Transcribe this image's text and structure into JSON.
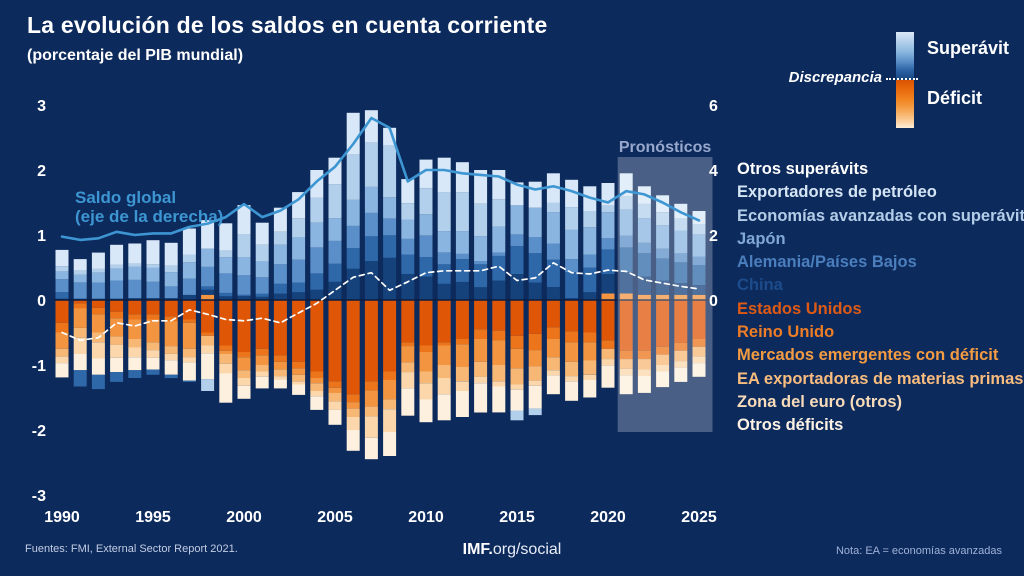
{
  "header": {
    "title": "La evolución de los saldos en cuenta corriente",
    "subtitle": "(porcentaje del PIB mundial)"
  },
  "colors": {
    "background": "#0d2a5c",
    "zero_line": "#0a1d40",
    "axis_text": "#ffffff",
    "forecast_overlay": "rgba(255,255,255,0.25)",
    "forecast_label": "#97a8cc",
    "saldo_line": "#3d96d2",
    "discrepancia_line": "#ffffff"
  },
  "top_legend": {
    "superavit_label": "Superávit",
    "deficit_label": "Déficit",
    "discrepancia_label": "Discrepancia",
    "gradient_blues": [
      "#dbe8f7",
      "#b5d0ec",
      "#8db9e0",
      "#5e92c9",
      "#2c63a5",
      "#16427c"
    ],
    "gradient_oranges": [
      "#d95303",
      "#e96a0c",
      "#f0831f",
      "#f5a14b",
      "#fac488",
      "#fdebd6"
    ]
  },
  "in_chart": {
    "saldo_label_line1": "Saldo global",
    "saldo_label_line2": "(eje de la derecha)",
    "forecast_label": "Pronósticos"
  },
  "footer": {
    "source": "Fuentes: FMI, External Sector Report 2021.",
    "social_bold": "IMF.",
    "social_rest": "org/social",
    "note": "Nota: EA = economías avanzadas"
  },
  "chart_data": {
    "type": "bar",
    "subtype": "stacked-bar-with-lines",
    "unit": "porcentaje del PIB mundial",
    "years": [
      1990,
      1991,
      1992,
      1993,
      1994,
      1995,
      1996,
      1997,
      1998,
      1999,
      2000,
      2001,
      2002,
      2003,
      2004,
      2005,
      2006,
      2007,
      2008,
      2009,
      2010,
      2011,
      2012,
      2013,
      2014,
      2015,
      2016,
      2017,
      2018,
      2019,
      2020,
      2021,
      2022,
      2023,
      2024,
      2025
    ],
    "x_ticks": [
      1990,
      1995,
      2000,
      2005,
      2010,
      2015,
      2020,
      2025
    ],
    "left_axis": {
      "ticks": [
        3,
        2,
        1,
        0,
        -1,
        -2,
        -3
      ],
      "range": [
        -3,
        3
      ]
    },
    "right_axis": {
      "ticks": [
        6,
        4,
        2,
        0
      ],
      "range": [
        -6,
        6
      ]
    },
    "forecast": {
      "label": "Pronósticos",
      "start_year": 2021,
      "end_year": 2025
    },
    "categories": [
      {
        "key": "otros_sup",
        "label": "Otros superávits",
        "color": "#d8e8f8",
        "legend_color": "#ffffff",
        "side": "surplus"
      },
      {
        "key": "petroleo",
        "label": "Exportadores de petróleo",
        "color": "#b2d0ec",
        "legend_color": "#d4e5f5",
        "side": "surplus"
      },
      {
        "key": "ea_sup",
        "label": "Economías avanzadas con superávit",
        "color": "#8ab5e0",
        "legend_color": "#b3cde9",
        "side": "surplus"
      },
      {
        "key": "japon",
        "label": "Japón",
        "color": "#5b8fc9",
        "legend_color": "#7fa8d6",
        "side": "surplus"
      },
      {
        "key": "alemania",
        "label": "Alemania/Países Bajos",
        "color": "#2e68a8",
        "legend_color": "#4a7ebd",
        "side": "surplus"
      },
      {
        "key": "china",
        "label": "China",
        "color": "#16427c",
        "legend_color": "#1c4c8c",
        "side": "surplus"
      },
      {
        "key": "eeuu",
        "label": "Estados Unidos",
        "color": "#e05607",
        "legend_color": "#de5a14",
        "side": "deficit"
      },
      {
        "key": "uk",
        "label": "Reino Unido",
        "color": "#ec741b",
        "legend_color": "#ed7d26",
        "side": "deficit"
      },
      {
        "key": "em",
        "label": "Mercados emergentes con déficit",
        "color": "#f29440",
        "legend_color": "#f29b42",
        "side": "deficit"
      },
      {
        "key": "ea_mat",
        "label": "EA exportadoras de materias primas",
        "color": "#f7b775",
        "legend_color": "#f7bc7e",
        "side": "deficit"
      },
      {
        "key": "zona_euro",
        "label": "Zona del euro (otros)",
        "color": "#fbd7ab",
        "legend_color": "#f8dcba",
        "side": "deficit"
      },
      {
        "key": "otros_def",
        "label": "Otros déficits",
        "color": "#fdf0de",
        "legend_color": "#fdf2e4",
        "side": "deficit"
      }
    ],
    "stack_order_up": [
      "em",
      "china",
      "alemania",
      "japon",
      "ea_sup",
      "petroleo",
      "otros_sup"
    ],
    "stack_order_down": [
      "eeuu",
      "uk",
      "em",
      "ea_mat",
      "zona_euro",
      "otros_def",
      "alemania",
      "petroleo"
    ],
    "series": {
      "china": [
        0.02,
        0.02,
        0.02,
        0.02,
        0.03,
        0.03,
        0.03,
        0.08,
        0.08,
        0.06,
        0.06,
        0.05,
        0.1,
        0.12,
        0.16,
        0.28,
        0.48,
        0.6,
        0.65,
        0.4,
        0.36,
        0.25,
        0.28,
        0.2,
        0.3,
        0.4,
        0.27,
        0.2,
        0.03,
        0.12,
        0.3,
        0.33,
        0.28,
        0.22,
        0.18,
        0.15
      ],
      "alemania": [
        0.1,
        -0.25,
        -0.22,
        -0.15,
        -0.12,
        -0.08,
        -0.05,
        -0.02,
        0.05,
        0.05,
        0.02,
        0.05,
        0.15,
        0.15,
        0.25,
        0.28,
        0.32,
        0.38,
        0.35,
        0.3,
        0.3,
        0.3,
        0.35,
        0.35,
        0.38,
        0.43,
        0.45,
        0.42,
        0.4,
        0.38,
        0.38,
        0.38,
        0.36,
        0.34,
        0.32,
        0.31
      ],
      "japon": [
        0.2,
        0.25,
        0.25,
        0.28,
        0.28,
        0.25,
        0.18,
        0.25,
        0.3,
        0.3,
        0.3,
        0.25,
        0.3,
        0.35,
        0.4,
        0.35,
        0.34,
        0.36,
        0.25,
        0.24,
        0.33,
        0.18,
        0.08,
        0.05,
        0.05,
        0.18,
        0.25,
        0.25,
        0.2,
        0.2,
        0.17,
        0.18,
        0.16,
        0.15,
        0.14,
        0.13
      ],
      "ea_sup": [
        0.12,
        0.12,
        0.15,
        0.18,
        0.2,
        0.22,
        0.22,
        0.25,
        0.28,
        0.25,
        0.28,
        0.25,
        0.3,
        0.35,
        0.38,
        0.35,
        0.4,
        0.4,
        0.33,
        0.3,
        0.33,
        0.33,
        0.35,
        0.38,
        0.4,
        0.45,
        0.45,
        0.48,
        0.45,
        0.42,
        0.4,
        0.4,
        0.38,
        0.36,
        0.35,
        0.34
      ],
      "petroleo": [
        0.08,
        0.06,
        0.06,
        0.06,
        0.05,
        0.05,
        0.1,
        0.12,
        -0.18,
        0.1,
        0.35,
        0.25,
        0.2,
        0.28,
        0.38,
        0.52,
        0.7,
        0.68,
        0.8,
        0.25,
        0.4,
        0.6,
        0.6,
        0.5,
        0.42,
        -0.15,
        -0.1,
        0.15,
        0.35,
        0.25,
        0.1,
        0.2,
        0.22,
        0.2,
        0.18,
        0.16
      ],
      "otros_sup": [
        0.25,
        0.18,
        0.25,
        0.31,
        0.31,
        0.37,
        0.35,
        0.4,
        0.44,
        0.42,
        0.45,
        0.34,
        0.37,
        0.41,
        0.43,
        0.41,
        0.64,
        0.5,
        0.27,
        0.37,
        0.44,
        0.53,
        0.46,
        0.52,
        0.45,
        0.35,
        0.4,
        0.45,
        0.42,
        0.38,
        0.35,
        0.36,
        0.27,
        0.26,
        0.23,
        0.2
      ],
      "eeuu": [
        -0.35,
        -0.05,
        -0.12,
        -0.18,
        -0.22,
        -0.22,
        -0.25,
        -0.3,
        -0.5,
        -0.7,
        -0.8,
        -0.75,
        -0.85,
        -0.95,
        -1.1,
        -1.25,
        -1.45,
        -1.25,
        -1.1,
        -0.65,
        -0.7,
        -0.65,
        -0.6,
        -0.45,
        -0.47,
        -0.55,
        -0.52,
        -0.42,
        -0.48,
        -0.5,
        -0.62,
        -0.78,
        -0.78,
        -0.72,
        -0.66,
        -0.6
      ],
      "uk": [
        -0.15,
        -0.08,
        -0.1,
        -0.1,
        -0.08,
        -0.08,
        -0.08,
        -0.05,
        -0.05,
        -0.08,
        -0.08,
        -0.1,
        -0.1,
        -0.1,
        -0.1,
        -0.1,
        -0.12,
        -0.14,
        -0.13,
        -0.06,
        -0.1,
        -0.05,
        -0.08,
        -0.15,
        -0.15,
        -0.2,
        -0.25,
        -0.18,
        -0.17,
        -0.15,
        -0.13,
        -0.13,
        -0.13,
        -0.12,
        -0.12,
        -0.12
      ],
      "em": [
        -0.25,
        -0.3,
        -0.28,
        -0.28,
        -0.3,
        -0.35,
        -0.38,
        -0.4,
        0.08,
        -0.05,
        -0.2,
        -0.15,
        -0.12,
        -0.1,
        -0.08,
        -0.08,
        -0.1,
        -0.25,
        -0.3,
        -0.25,
        -0.3,
        -0.3,
        -0.35,
        -0.35,
        -0.38,
        -0.3,
        -0.25,
        -0.28,
        -0.3,
        -0.28,
        0.1,
        0.1,
        0.08,
        0.08,
        0.08,
        0.08
      ],
      "ea_mat": [
        -0.12,
        -0.15,
        -0.15,
        -0.13,
        -0.13,
        -0.12,
        -0.12,
        -0.13,
        -0.15,
        -0.15,
        -0.12,
        -0.1,
        -0.1,
        -0.1,
        -0.12,
        -0.13,
        -0.13,
        -0.15,
        -0.15,
        -0.15,
        -0.18,
        -0.2,
        -0.22,
        -0.23,
        -0.25,
        -0.25,
        -0.22,
        -0.2,
        -0.22,
        -0.22,
        -0.16,
        -0.15,
        -0.16,
        -0.16,
        -0.16,
        -0.15
      ],
      "zona_euro": [
        -0.1,
        -0.25,
        -0.25,
        -0.2,
        -0.15,
        -0.12,
        -0.1,
        -0.08,
        -0.12,
        -0.15,
        -0.12,
        -0.08,
        -0.05,
        -0.05,
        -0.08,
        -0.13,
        -0.2,
        -0.33,
        -0.35,
        -0.25,
        -0.25,
        -0.25,
        -0.15,
        -0.1,
        -0.08,
        -0.08,
        -0.08,
        -0.08,
        -0.08,
        -0.08,
        -0.1,
        -0.1,
        -0.1,
        -0.1,
        -0.1,
        -0.1
      ],
      "otros_def": [
        -0.22,
        -0.25,
        -0.25,
        -0.22,
        -0.2,
        -0.18,
        -0.22,
        -0.28,
        -0.4,
        -0.45,
        -0.2,
        -0.18,
        -0.14,
        -0.16,
        -0.21,
        -0.23,
        -0.32,
        -0.33,
        -0.37,
        -0.42,
        -0.35,
        -0.4,
        -0.4,
        -0.45,
        -0.4,
        -0.32,
        -0.35,
        -0.29,
        -0.3,
        -0.27,
        -0.34,
        -0.29,
        -0.26,
        -0.24,
        -0.22,
        -0.21
      ]
    },
    "lines": {
      "saldo_global": {
        "label": "Saldo global (eje de la derecha)",
        "axis": "right",
        "style": "solid",
        "color": "#3d96d2",
        "values": [
          1.95,
          1.85,
          1.9,
          2.1,
          2.0,
          2.05,
          2.05,
          2.25,
          2.35,
          2.55,
          2.95,
          2.55,
          2.75,
          3.1,
          3.65,
          4.1,
          4.8,
          5.6,
          5.3,
          3.65,
          4.0,
          4.0,
          3.9,
          3.85,
          3.8,
          3.55,
          3.4,
          3.5,
          3.35,
          3.15,
          3.0,
          3.35,
          3.25,
          3.0,
          2.7,
          2.45
        ]
      },
      "discrepancia": {
        "label": "Discrepancia",
        "axis": "left",
        "style": "dashed",
        "color": "#ffffff",
        "values": [
          -0.5,
          -0.62,
          -0.58,
          -0.35,
          -0.4,
          -0.32,
          -0.32,
          -0.15,
          -0.22,
          -0.3,
          -0.32,
          -0.28,
          -0.35,
          -0.2,
          -0.05,
          0.15,
          0.35,
          0.42,
          0.15,
          0.28,
          0.42,
          0.45,
          0.45,
          0.45,
          0.52,
          0.3,
          0.34,
          0.57,
          0.42,
          0.4,
          0.46,
          0.44,
          0.31,
          0.26,
          0.21,
          0.17
        ]
      }
    }
  }
}
